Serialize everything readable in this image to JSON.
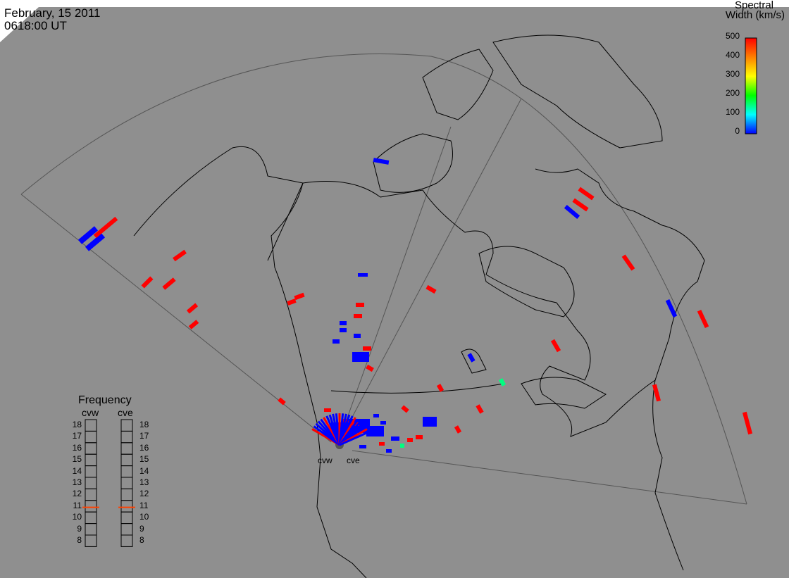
{
  "header": {
    "date": "February, 15 2011",
    "time": "0618:00 UT"
  },
  "colorbar": {
    "title_line1": "Spectral",
    "title_line2": "Width (km/s)",
    "ticks": [
      "500",
      "400",
      "300",
      "200",
      "100",
      "0"
    ],
    "colors": [
      "#ff0000",
      "#ff8000",
      "#ffff00",
      "#00ff00",
      "#00ffff",
      "#0000ff"
    ]
  },
  "frequency": {
    "title": "Frequency",
    "left_label": "cvw",
    "right_label": "cve",
    "ticks": [
      "18",
      "17",
      "16",
      "15",
      "14",
      "13",
      "12",
      "11",
      "10",
      "9",
      "8"
    ],
    "cvw_value": 10.9,
    "cve_value": 10.9,
    "marker_color": "#ff4000"
  },
  "radars": {
    "west_label": "cvw",
    "east_label": "cve"
  },
  "scatter_colors": {
    "low": "#0000ff",
    "high": "#ff0000",
    "mid": "#00ff80"
  }
}
